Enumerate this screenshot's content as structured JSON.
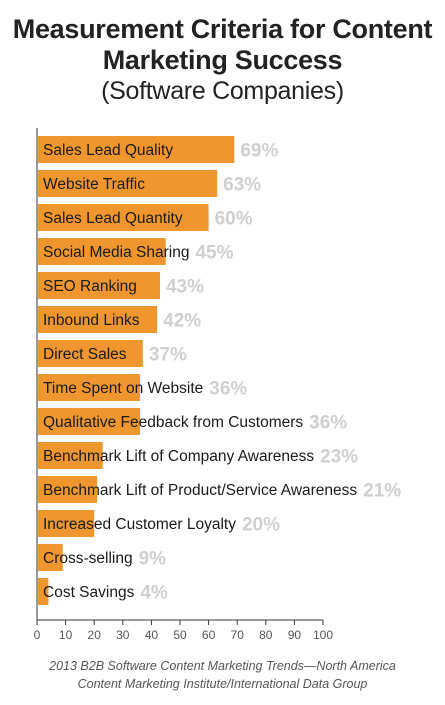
{
  "chart_data": {
    "type": "bar",
    "orientation": "horizontal",
    "title": "Measurement Criteria for Content Marketing Success",
    "subtitle": "(Software Companies)",
    "categories": [
      "Sales Lead Quality",
      "Website Traffic",
      "Sales Lead Quantity",
      "Social Media Sharing",
      "SEO Ranking",
      "Inbound Links",
      "Direct Sales",
      "Time Spent on Website",
      "Qualitative Feedback from Customers",
      "Benchmark Lift of Company Awareness",
      "Benchmark Lift of Product/Service Awareness",
      "Increased Customer Loyalty",
      "Cross-selling",
      "Cost Savings"
    ],
    "values": [
      69,
      63,
      60,
      45,
      43,
      42,
      37,
      36,
      36,
      23,
      21,
      20,
      9,
      4
    ],
    "value_labels": [
      "69%",
      "63%",
      "60%",
      "45%",
      "43%",
      "42%",
      "37%",
      "36%",
      "36%",
      "23%",
      "21%",
      "20%",
      "9%",
      "4%"
    ],
    "xlim": [
      0,
      100
    ],
    "xticks": [
      0,
      10,
      20,
      30,
      40,
      50,
      60,
      70,
      80,
      90,
      100
    ],
    "grid": false,
    "bar_color": "#f0962e",
    "value_label_color": "#cfcfcf",
    "source_lines": [
      "2013 B2B Software Content Marketing Trends—North America",
      "Content Marketing Institute/International Data Group"
    ]
  }
}
